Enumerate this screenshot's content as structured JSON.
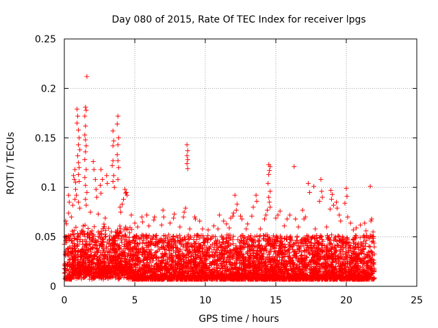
{
  "chart_data": {
    "type": "scatter",
    "title": "Day 080 of 2015, Rate Of TEC Index for receiver lpgs",
    "xlabel": "GPS time / hours",
    "ylabel": "ROTI / TECUs",
    "xlim": [
      0,
      25
    ],
    "ylim": [
      0,
      0.25
    ],
    "x_ticks": [
      0,
      5,
      10,
      15,
      20,
      25
    ],
    "y_ticks": [
      0,
      0.05,
      0.1,
      0.15,
      0.2,
      0.25
    ],
    "x_tick_labels": [
      "0",
      "5",
      "10",
      "15",
      "20",
      "25"
    ],
    "y_tick_labels": [
      "0",
      "0.05",
      "0.1",
      "0.15",
      "0.2",
      "0.25"
    ],
    "grid": true,
    "marker": "plus",
    "color": "#ff0000",
    "series": [
      {
        "name": "ROTI",
        "points": [
          [
            1.6,
            0.212
          ],
          [
            1.5,
            0.181
          ],
          [
            1.55,
            0.178
          ],
          [
            0.9,
            0.179
          ],
          [
            0.95,
            0.172
          ],
          [
            1.45,
            0.172
          ],
          [
            1.5,
            0.162
          ],
          [
            0.9,
            0.165
          ],
          [
            1.0,
            0.158
          ],
          [
            1.05,
            0.15
          ],
          [
            1.45,
            0.153
          ],
          [
            1.5,
            0.148
          ],
          [
            1.55,
            0.142
          ],
          [
            1.0,
            0.143
          ],
          [
            1.1,
            0.138
          ],
          [
            0.95,
            0.132
          ],
          [
            1.0,
            0.125
          ],
          [
            1.05,
            0.12
          ],
          [
            1.5,
            0.136
          ],
          [
            1.45,
            0.128
          ],
          [
            1.55,
            0.118
          ],
          [
            0.75,
            0.118
          ],
          [
            0.65,
            0.112
          ],
          [
            0.7,
            0.108
          ],
          [
            0.8,
            0.105
          ],
          [
            1.0,
            0.113
          ],
          [
            1.05,
            0.106
          ],
          [
            1.45,
            0.11
          ],
          [
            1.5,
            0.102
          ],
          [
            1.6,
            0.095
          ],
          [
            0.8,
            0.098
          ],
          [
            0.85,
            0.092
          ],
          [
            0.75,
            0.088
          ],
          [
            1.0,
            0.085
          ],
          [
            1.5,
            0.088
          ],
          [
            1.55,
            0.082
          ],
          [
            0.3,
            0.092
          ],
          [
            0.35,
            0.085
          ],
          [
            0.6,
            0.082
          ],
          [
            1.1,
            0.079
          ],
          [
            3.8,
            0.172
          ],
          [
            3.75,
            0.164
          ],
          [
            3.45,
            0.157
          ],
          [
            3.5,
            0.147
          ],
          [
            3.45,
            0.142
          ],
          [
            3.85,
            0.15
          ],
          [
            3.8,
            0.143
          ],
          [
            3.75,
            0.133
          ],
          [
            3.8,
            0.127
          ],
          [
            3.45,
            0.127
          ],
          [
            3.4,
            0.122
          ],
          [
            3.85,
            0.12
          ],
          [
            3.5,
            0.112
          ],
          [
            3.45,
            0.106
          ],
          [
            3.55,
            0.1
          ],
          [
            3.8,
            0.108
          ],
          [
            2.6,
            0.118
          ],
          [
            2.7,
            0.108
          ],
          [
            2.55,
            0.102
          ],
          [
            2.6,
            0.094
          ],
          [
            3.0,
            0.112
          ],
          [
            3.05,
            0.104
          ],
          [
            2.05,
            0.126
          ],
          [
            2.1,
            0.118
          ],
          [
            2.2,
            0.108
          ],
          [
            2.25,
            0.098
          ],
          [
            2.3,
            0.09
          ],
          [
            4.3,
            0.098
          ],
          [
            4.35,
            0.094
          ],
          [
            4.4,
            0.095
          ],
          [
            4.45,
            0.092
          ],
          [
            4.2,
            0.088
          ],
          [
            4.1,
            0.083
          ],
          [
            3.95,
            0.08
          ],
          [
            4.0,
            0.075
          ],
          [
            8.7,
            0.143
          ],
          [
            8.75,
            0.137
          ],
          [
            8.7,
            0.132
          ],
          [
            8.75,
            0.128
          ],
          [
            8.7,
            0.124
          ],
          [
            8.75,
            0.119
          ],
          [
            8.6,
            0.079
          ],
          [
            8.5,
            0.075
          ],
          [
            8.45,
            0.07
          ],
          [
            7.0,
            0.077
          ],
          [
            7.05,
            0.07
          ],
          [
            6.4,
            0.07
          ],
          [
            6.35,
            0.067
          ],
          [
            5.5,
            0.07
          ],
          [
            5.55,
            0.065
          ],
          [
            5.85,
            0.072
          ],
          [
            7.8,
            0.073
          ],
          [
            7.75,
            0.069
          ],
          [
            9.25,
            0.07
          ],
          [
            9.3,
            0.068
          ],
          [
            9.6,
            0.066
          ],
          [
            10.6,
            0.061
          ],
          [
            11.0,
            0.072
          ],
          [
            11.3,
            0.066
          ],
          [
            11.5,
            0.063
          ],
          [
            12.1,
            0.092
          ],
          [
            12.25,
            0.083
          ],
          [
            12.2,
            0.077
          ],
          [
            12.0,
            0.074
          ],
          [
            11.95,
            0.071
          ],
          [
            11.8,
            0.069
          ],
          [
            12.5,
            0.071
          ],
          [
            12.6,
            0.068
          ],
          [
            13.0,
            0.063
          ],
          [
            13.6,
            0.092
          ],
          [
            13.65,
            0.086
          ],
          [
            13.4,
            0.08
          ],
          [
            13.3,
            0.071
          ],
          [
            14.5,
            0.123
          ],
          [
            14.6,
            0.121
          ],
          [
            14.55,
            0.117
          ],
          [
            14.5,
            0.113
          ],
          [
            14.45,
            0.104
          ],
          [
            14.6,
            0.096
          ],
          [
            14.5,
            0.09
          ],
          [
            14.55,
            0.085
          ],
          [
            14.6,
            0.08
          ],
          [
            14.4,
            0.077
          ],
          [
            14.3,
            0.072
          ],
          [
            14.2,
            0.068
          ],
          [
            16.3,
            0.121
          ],
          [
            17.3,
            0.104
          ],
          [
            17.4,
            0.095
          ],
          [
            17.7,
            0.101
          ],
          [
            18.2,
            0.108
          ],
          [
            18.25,
            0.096
          ],
          [
            18.3,
            0.09
          ],
          [
            18.1,
            0.086
          ],
          [
            16.9,
            0.077
          ],
          [
            17.1,
            0.07
          ],
          [
            17.0,
            0.068
          ],
          [
            16.4,
            0.068
          ],
          [
            16.0,
            0.072
          ],
          [
            15.8,
            0.068
          ],
          [
            15.3,
            0.076
          ],
          [
            15.15,
            0.072
          ],
          [
            15.0,
            0.069
          ],
          [
            18.9,
            0.097
          ],
          [
            19.0,
            0.093
          ],
          [
            18.95,
            0.088
          ],
          [
            19.1,
            0.082
          ],
          [
            18.85,
            0.078
          ],
          [
            19.3,
            0.085
          ],
          [
            19.35,
            0.079
          ],
          [
            19.5,
            0.072
          ],
          [
            19.6,
            0.066
          ],
          [
            20.0,
            0.099
          ],
          [
            20.05,
            0.091
          ],
          [
            19.9,
            0.084
          ],
          [
            20.1,
            0.07
          ],
          [
            20.3,
            0.064
          ],
          [
            21.7,
            0.101
          ],
          [
            21.8,
            0.068
          ],
          [
            21.75,
            0.066
          ],
          [
            21.3,
            0.064
          ],
          [
            21.0,
            0.062
          ],
          [
            20.7,
            0.059
          ],
          [
            0.1,
            0.066
          ],
          [
            0.15,
            0.063
          ],
          [
            0.3,
            0.074
          ],
          [
            0.5,
            0.07
          ],
          [
            1.85,
            0.075
          ],
          [
            2.4,
            0.073
          ],
          [
            2.9,
            0.069
          ],
          [
            4.75,
            0.072
          ],
          [
            5.0,
            0.064
          ],
          [
            5.2,
            0.06
          ],
          [
            6.0,
            0.061
          ],
          [
            6.9,
            0.062
          ],
          [
            7.5,
            0.064
          ],
          [
            8.2,
            0.06
          ],
          [
            8.9,
            0.058
          ],
          [
            9.8,
            0.058
          ],
          [
            10.2,
            0.057
          ],
          [
            10.9,
            0.058
          ],
          [
            11.7,
            0.059
          ],
          [
            12.9,
            0.058
          ],
          [
            13.9,
            0.058
          ],
          [
            15.6,
            0.061
          ],
          [
            16.6,
            0.06
          ],
          [
            17.8,
            0.058
          ],
          [
            18.6,
            0.06
          ],
          [
            20.5,
            0.057
          ],
          [
            21.4,
            0.056
          ],
          [
            21.9,
            0.055
          ]
        ]
      }
    ]
  }
}
